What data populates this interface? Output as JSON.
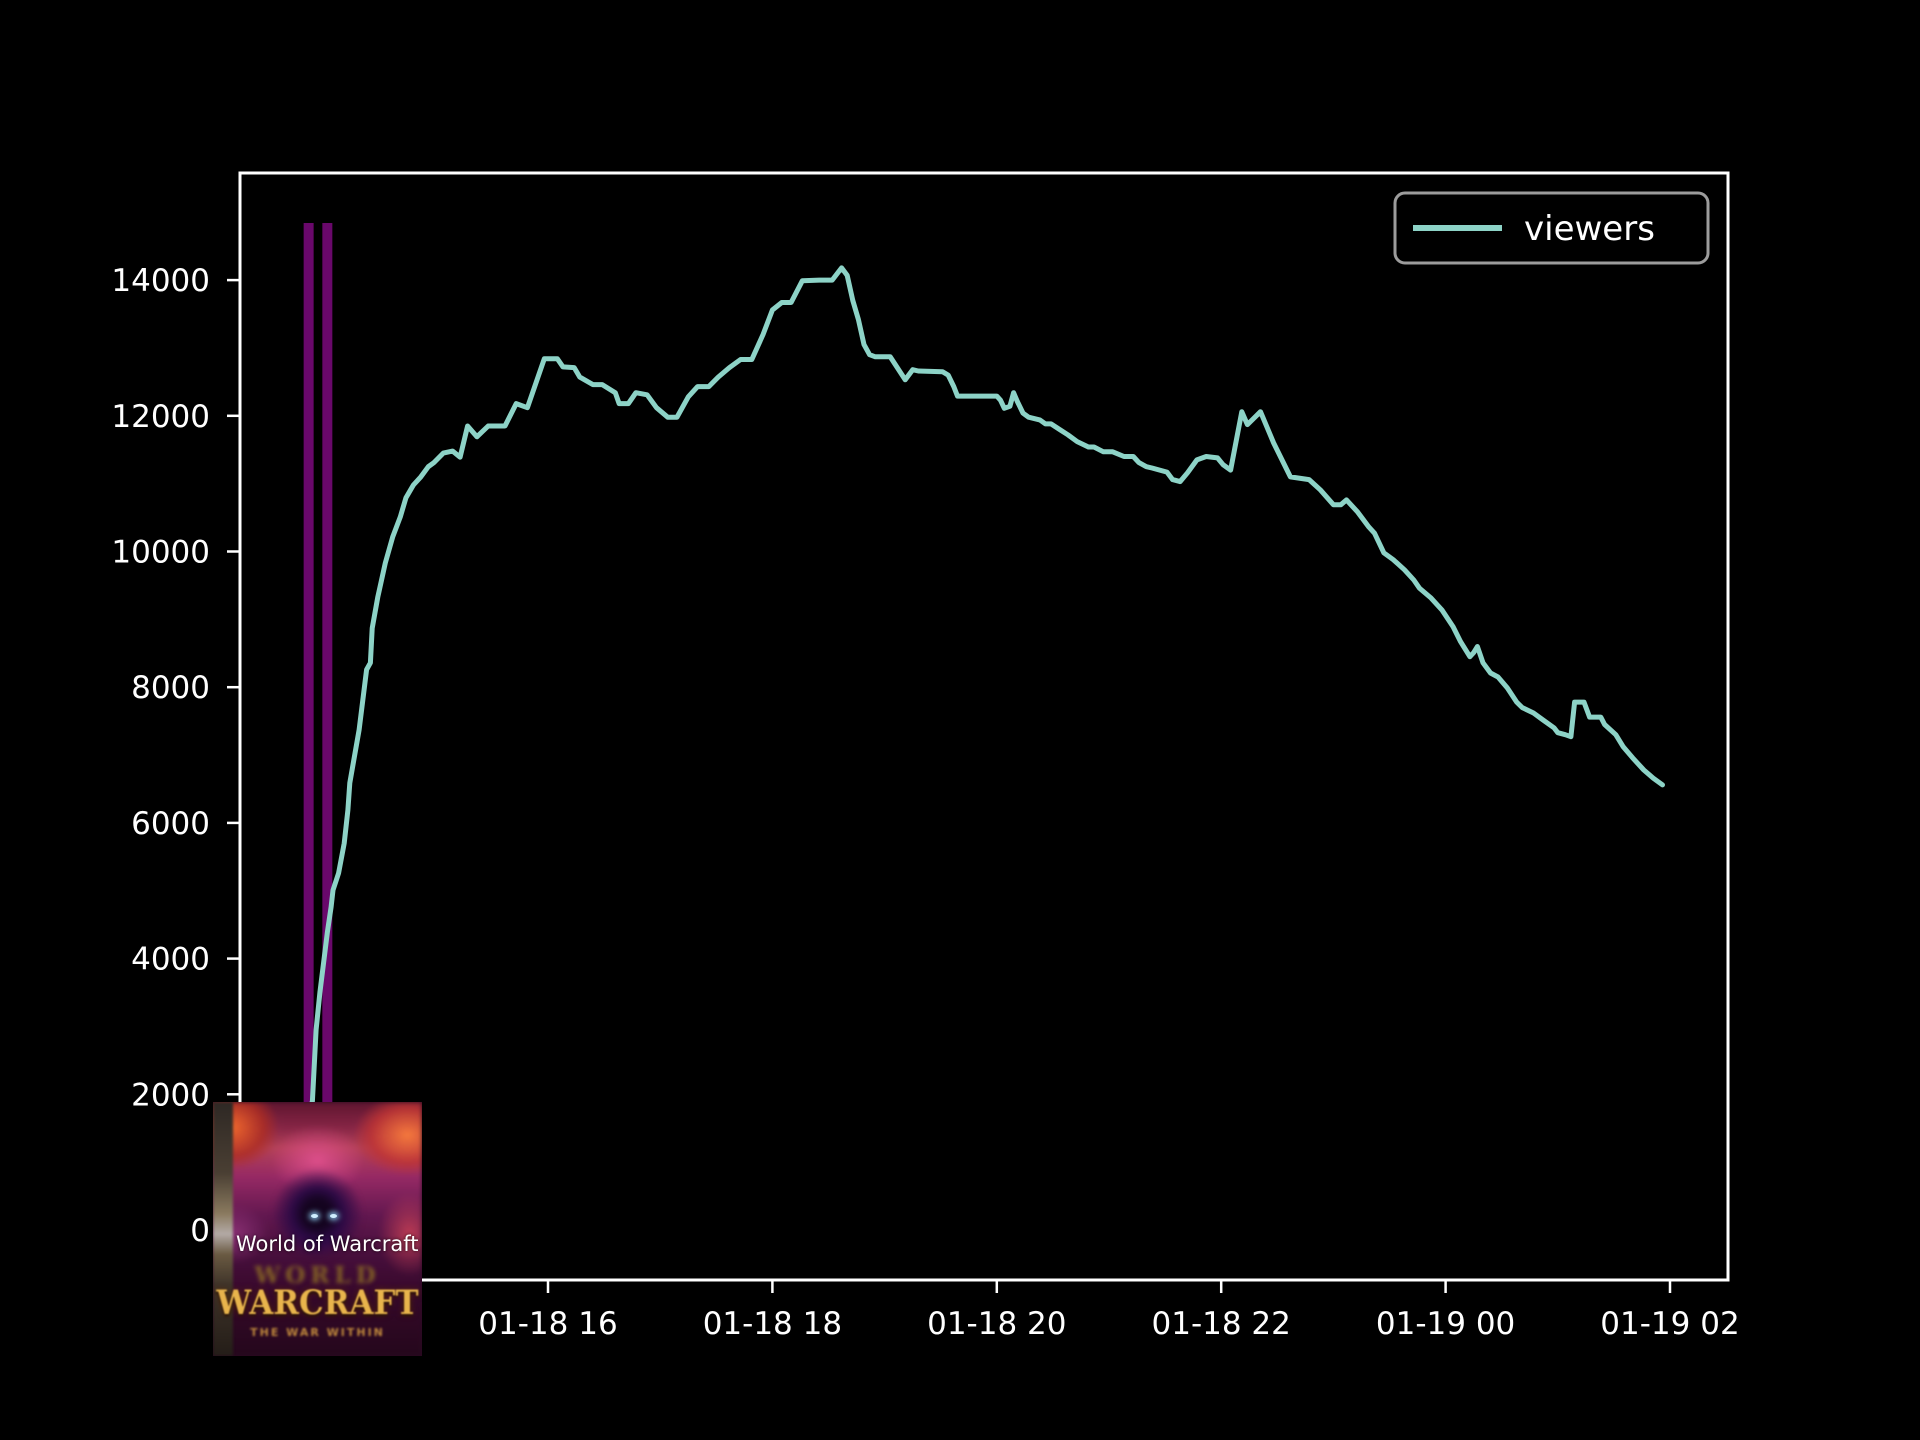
{
  "style": {
    "background": "#000000",
    "spine_color": "#ffffff",
    "tick_color": "#ffffff",
    "tick_label_color": "#ffffff",
    "legend_border_color": "#9c9c9c",
    "legend_text_color": "#ffffff",
    "vline_color": "#69086b",
    "series_color": "#8dd3c7"
  },
  "legend": {
    "label": "viewers"
  },
  "overlay": {
    "caption": "World of Warcraft",
    "logo_world": "WORLD",
    "logo_warcraft": "WARCRAFT",
    "logo_subtitle": "THE WAR WITHIN"
  },
  "chart_data": {
    "type": "line",
    "title": "",
    "xlabel": "",
    "ylabel": "",
    "grid": false,
    "legend_position": "upper right",
    "x_ticks": [
      {
        "label": "01-18 16",
        "minutes": 120
      },
      {
        "label": "01-18 18",
        "minutes": 240
      },
      {
        "label": "01-18 20",
        "minutes": 360
      },
      {
        "label": "01-18 22",
        "minutes": 480
      },
      {
        "label": "01-19 00",
        "minutes": 600
      },
      {
        "label": "01-19 02",
        "minutes": 720
      }
    ],
    "y_ticks": [
      0,
      2000,
      4000,
      6000,
      8000,
      10000,
      12000,
      14000
    ],
    "x_range": [
      "01-18 13:15",
      "01-19 02:31"
    ],
    "y_range": [
      -740,
      15580
    ],
    "vlines": [
      {
        "time": "01-18 13:52"
      },
      {
        "time": "01-18 14:02"
      }
    ],
    "series": [
      {
        "name": "viewers",
        "points": [
          [
            "01-18 13:50",
            1500
          ],
          [
            "01-18 13:54",
            1900
          ],
          [
            "01-18 13:56",
            2950
          ],
          [
            "01-18 13:58",
            3500
          ],
          [
            "01-18 14:00",
            3940
          ],
          [
            "01-18 14:02",
            4380
          ],
          [
            "01-18 14:04",
            4760
          ],
          [
            "01-18 14:05",
            5010
          ],
          [
            "01-18 14:08",
            5260
          ],
          [
            "01-18 14:11",
            5700
          ],
          [
            "01-18 14:13",
            6190
          ],
          [
            "01-18 14:14",
            6590
          ],
          [
            "01-18 14:19",
            7370
          ],
          [
            "01-18 14:23",
            8260
          ],
          [
            "01-18 14:25",
            8360
          ],
          [
            "01-18 14:26",
            8870
          ],
          [
            "01-18 14:29",
            9330
          ],
          [
            "01-18 14:33",
            9830
          ],
          [
            "01-18 14:37",
            10220
          ],
          [
            "01-18 14:41",
            10510
          ],
          [
            "01-18 14:44",
            10790
          ],
          [
            "01-18 14:48",
            10980
          ],
          [
            "01-18 14:52",
            11100
          ],
          [
            "01-18 14:56",
            11250
          ],
          [
            "01-18 14:59",
            11310
          ],
          [
            "01-18 15:04",
            11450
          ],
          [
            "01-18 15:09",
            11480
          ],
          [
            "01-18 15:13",
            11390
          ],
          [
            "01-18 15:17",
            11850
          ],
          [
            "01-18 15:22",
            11690
          ],
          [
            "01-18 15:28",
            11850
          ],
          [
            "01-18 15:37",
            11850
          ],
          [
            "01-18 15:43",
            12180
          ],
          [
            "01-18 15:49",
            12120
          ],
          [
            "01-18 15:58",
            12840
          ],
          [
            "01-18 16:05",
            12840
          ],
          [
            "01-18 16:08",
            12720
          ],
          [
            "01-18 16:14",
            12710
          ],
          [
            "01-18 16:17",
            12570
          ],
          [
            "01-18 16:24",
            12460
          ],
          [
            "01-18 16:29",
            12460
          ],
          [
            "01-18 16:36",
            12340
          ],
          [
            "01-18 16:38",
            12180
          ],
          [
            "01-18 16:43",
            12180
          ],
          [
            "01-18 16:47",
            12340
          ],
          [
            "01-18 16:53",
            12310
          ],
          [
            "01-18 16:58",
            12120
          ],
          [
            "01-18 17:04",
            11980
          ],
          [
            "01-18 17:09",
            11980
          ],
          [
            "01-18 17:15",
            12280
          ],
          [
            "01-18 17:20",
            12430
          ],
          [
            "01-18 17:26",
            12430
          ],
          [
            "01-18 17:31",
            12570
          ],
          [
            "01-18 17:37",
            12710
          ],
          [
            "01-18 17:43",
            12830
          ],
          [
            "01-18 17:49",
            12830
          ],
          [
            "01-18 17:55",
            13200
          ],
          [
            "01-18 18:00",
            13560
          ],
          [
            "01-18 18:05",
            13670
          ],
          [
            "01-18 18:10",
            13670
          ],
          [
            "01-18 18:16",
            13990
          ],
          [
            "01-18 18:25",
            14000
          ],
          [
            "01-18 18:32",
            14000
          ],
          [
            "01-18 18:37",
            14180
          ],
          [
            "01-18 18:40",
            14070
          ],
          [
            "01-18 18:43",
            13700
          ],
          [
            "01-18 18:46",
            13420
          ],
          [
            "01-18 18:49",
            13050
          ],
          [
            "01-18 18:52",
            12900
          ],
          [
            "01-18 18:55",
            12870
          ],
          [
            "01-18 19:03",
            12870
          ],
          [
            "01-18 19:11",
            12530
          ],
          [
            "01-18 19:15",
            12680
          ],
          [
            "01-18 19:18",
            12660
          ],
          [
            "01-18 19:31",
            12650
          ],
          [
            "01-18 19:34",
            12600
          ],
          [
            "01-18 19:37",
            12430
          ],
          [
            "01-18 19:39",
            12290
          ],
          [
            "01-18 20:00",
            12290
          ],
          [
            "01-18 20:02",
            12230
          ],
          [
            "01-18 20:04",
            12110
          ],
          [
            "01-18 20:07",
            12140
          ],
          [
            "01-18 20:09",
            12340
          ],
          [
            "01-18 20:11",
            12210
          ],
          [
            "01-18 20:14",
            12040
          ],
          [
            "01-18 20:17",
            11980
          ],
          [
            "01-18 20:23",
            11940
          ],
          [
            "01-18 20:26",
            11880
          ],
          [
            "01-18 20:29",
            11880
          ],
          [
            "01-18 20:34",
            11790
          ],
          [
            "01-18 20:38",
            11720
          ],
          [
            "01-18 20:43",
            11620
          ],
          [
            "01-18 20:49",
            11540
          ],
          [
            "01-18 20:52",
            11540
          ],
          [
            "01-18 20:57",
            11470
          ],
          [
            "01-18 21:02",
            11470
          ],
          [
            "01-18 21:08",
            11400
          ],
          [
            "01-18 21:13",
            11400
          ],
          [
            "01-18 21:16",
            11310
          ],
          [
            "01-18 21:20",
            11250
          ],
          [
            "01-18 21:23",
            11230
          ],
          [
            "01-18 21:31",
            11170
          ],
          [
            "01-18 21:34",
            11060
          ],
          [
            "01-18 21:38",
            11030
          ],
          [
            "01-18 21:42",
            11160
          ],
          [
            "01-18 21:47",
            11350
          ],
          [
            "01-18 21:52",
            11400
          ],
          [
            "01-18 21:58",
            11380
          ],
          [
            "01-18 22:01",
            11280
          ],
          [
            "01-18 22:05",
            11200
          ],
          [
            "01-18 22:11",
            12060
          ],
          [
            "01-18 22:14",
            11870
          ],
          [
            "01-18 22:21",
            12060
          ],
          [
            "01-18 22:28",
            11600
          ],
          [
            "01-18 22:37",
            11100
          ],
          [
            "01-18 22:47",
            11060
          ],
          [
            "01-18 22:53",
            10910
          ],
          [
            "01-18 23:00",
            10690
          ],
          [
            "01-18 23:04",
            10690
          ],
          [
            "01-18 23:07",
            10760
          ],
          [
            "01-18 23:13",
            10580
          ],
          [
            "01-18 23:19",
            10360
          ],
          [
            "01-18 23:22",
            10270
          ],
          [
            "01-18 23:27",
            9980
          ],
          [
            "01-18 23:32",
            9880
          ],
          [
            "01-18 23:38",
            9730
          ],
          [
            "01-18 23:43",
            9580
          ],
          [
            "01-18 23:46",
            9460
          ],
          [
            "01-18 23:52",
            9320
          ],
          [
            "01-18 23:58",
            9140
          ],
          [
            "01-19 00:04",
            8890
          ],
          [
            "01-19 00:08",
            8670
          ],
          [
            "01-19 00:13",
            8450
          ],
          [
            "01-19 00:15",
            8510
          ],
          [
            "01-19 00:17",
            8600
          ],
          [
            "01-19 00:20",
            8360
          ],
          [
            "01-19 00:24",
            8210
          ],
          [
            "01-19 00:28",
            8150
          ],
          [
            "01-19 00:33",
            7990
          ],
          [
            "01-19 00:38",
            7780
          ],
          [
            "01-19 00:41",
            7700
          ],
          [
            "01-19 00:47",
            7620
          ],
          [
            "01-19 00:52",
            7520
          ],
          [
            "01-19 00:58",
            7400
          ],
          [
            "01-19 01:00",
            7330
          ],
          [
            "01-19 01:04",
            7300
          ],
          [
            "01-19 01:07",
            7270
          ],
          [
            "01-19 01:09",
            7780
          ],
          [
            "01-19 01:14",
            7780
          ],
          [
            "01-19 01:17",
            7560
          ],
          [
            "01-19 01:23",
            7560
          ],
          [
            "01-19 01:25",
            7450
          ],
          [
            "01-19 01:31",
            7300
          ],
          [
            "01-19 01:35",
            7120
          ],
          [
            "01-19 01:40",
            6960
          ],
          [
            "01-19 01:46",
            6780
          ],
          [
            "01-19 01:51",
            6660
          ],
          [
            "01-19 01:56",
            6560
          ]
        ]
      }
    ]
  }
}
